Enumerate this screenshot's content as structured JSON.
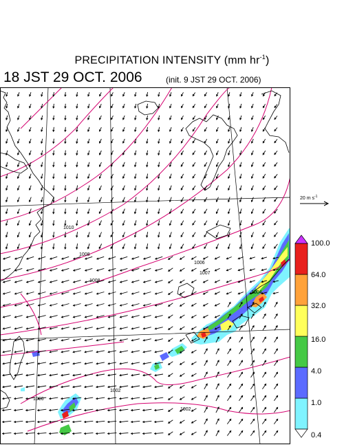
{
  "title": {
    "main": "PRECIPITATION INTENSITY (mm hr",
    "exp": "-1",
    "close": ")"
  },
  "subtitle": "18 JST 29 OCT. 2006",
  "init": "(init. 9 JST 29 OCT. 2006)",
  "wind_legend": {
    "label": "20 m s",
    "exp": "-1"
  },
  "colorbar": {
    "levels": [
      "0.4",
      "1.0",
      "4.0",
      "16.0",
      "32.0",
      "64.0",
      "100.0"
    ],
    "colors": [
      "#7ff3ff",
      "#5b6bff",
      "#45c945",
      "#ffff5a",
      "#ffa23a",
      "#e8201d"
    ],
    "over_color": "#cc33ff",
    "under_color": "#ffffff"
  },
  "isobar_labels": [
    "1010",
    "1008",
    "1008",
    "1006",
    "1007",
    "1004",
    "1002",
    "1006",
    "1002"
  ],
  "colors": {
    "isobar": "#d4006f",
    "grid": "#000000",
    "coast": "#000000"
  }
}
